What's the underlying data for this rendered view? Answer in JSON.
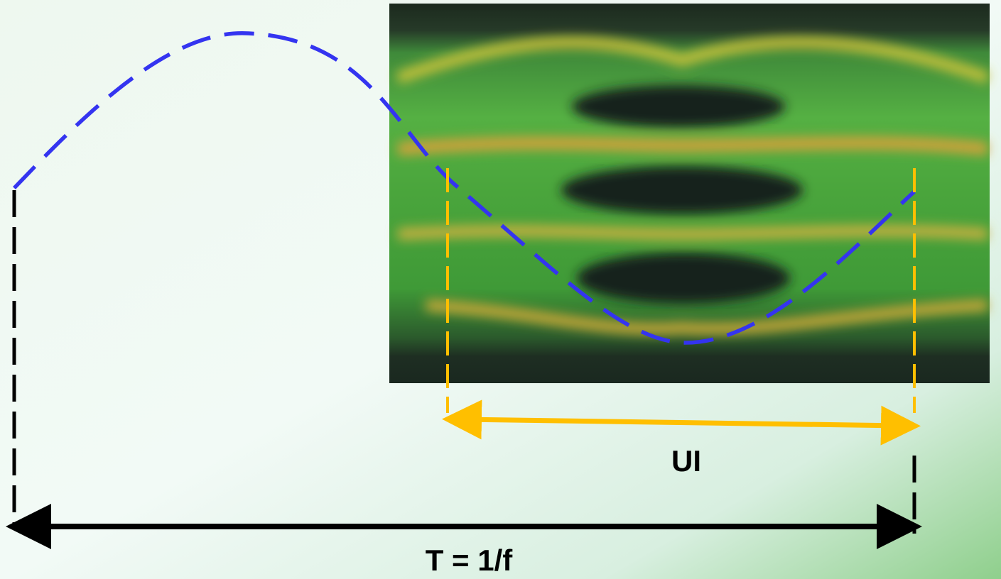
{
  "labels": {
    "ui": "UI",
    "period": "T = 1/f"
  }
}
